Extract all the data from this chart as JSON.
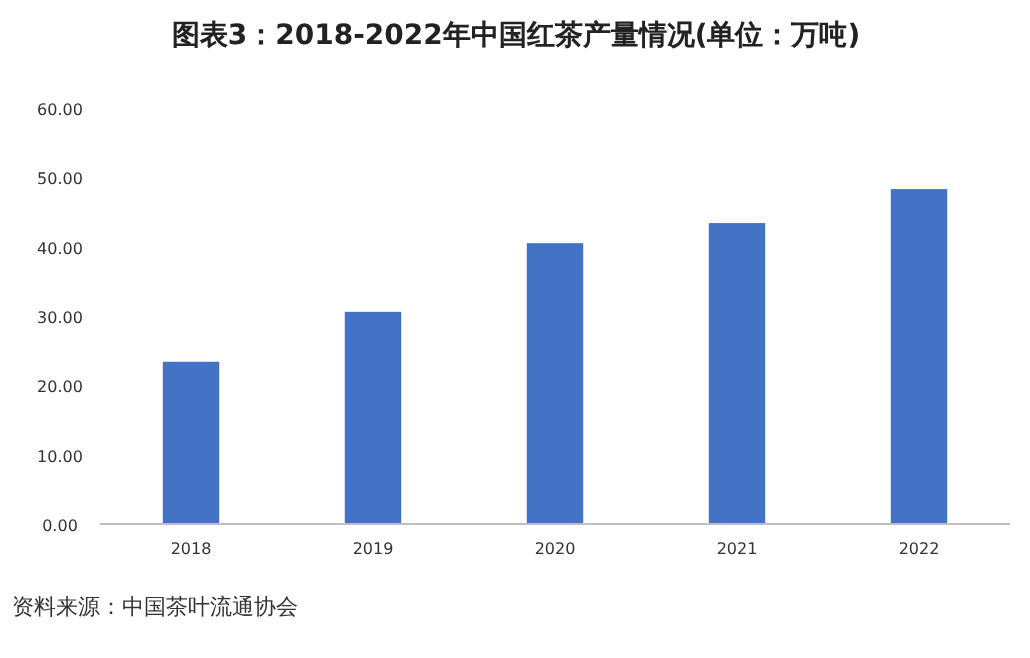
{
  "chart_data": {
    "type": "bar",
    "title": "图表3：2018-2022年中国红茶产量情况(单位：万吨)",
    "categories": [
      "2018",
      "2019",
      "2020",
      "2021",
      "2022"
    ],
    "values": [
      23.4,
      30.6,
      40.5,
      43.4,
      48.3
    ],
    "color": "#4472c4",
    "ylim": [
      0,
      60
    ],
    "yticks": [
      {
        "value": 0,
        "label": "0.00"
      },
      {
        "value": 10,
        "label": "10.00"
      },
      {
        "value": 20,
        "label": "20.00"
      },
      {
        "value": 30,
        "label": "30.00"
      },
      {
        "value": 40,
        "label": "40.00"
      },
      {
        "value": 50,
        "label": "50.00"
      },
      {
        "value": 60,
        "label": "60.00"
      }
    ],
    "annotations": [
      "资料来源：中国茶叶流通协会"
    ]
  }
}
